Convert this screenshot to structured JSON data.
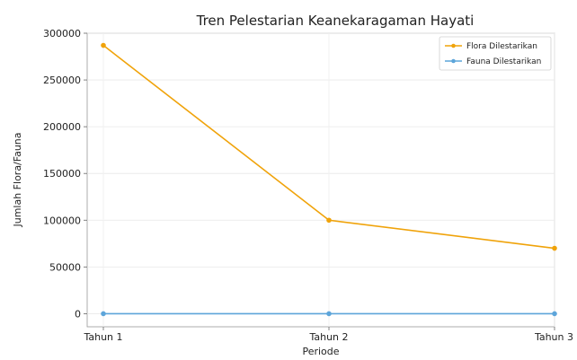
{
  "chart_data": {
    "type": "line",
    "title": "Tren Pelestarian Keanekaragaman Hayati",
    "xlabel": "Periode",
    "ylabel": "Jumlah Flora/Fauna",
    "categories": [
      "Tahun 1",
      "Tahun 2",
      "Tahun 3"
    ],
    "ylim": [
      -14000,
      300000
    ],
    "yticks": [
      0,
      50000,
      100000,
      150000,
      200000,
      250000,
      300000
    ],
    "ytick_labels": [
      "0",
      "50000",
      "100000",
      "150000",
      "200000",
      "250000",
      "300000"
    ],
    "grid": true,
    "legend_position": "top-right",
    "series": [
      {
        "name": "Flora Dilestarikan",
        "values": [
          287000,
          100000,
          70000
        ],
        "color": "#f0a30a"
      },
      {
        "name": "Fauna Dilestarikan",
        "values": [
          0,
          0,
          0
        ],
        "color": "#5da5da"
      }
    ]
  }
}
